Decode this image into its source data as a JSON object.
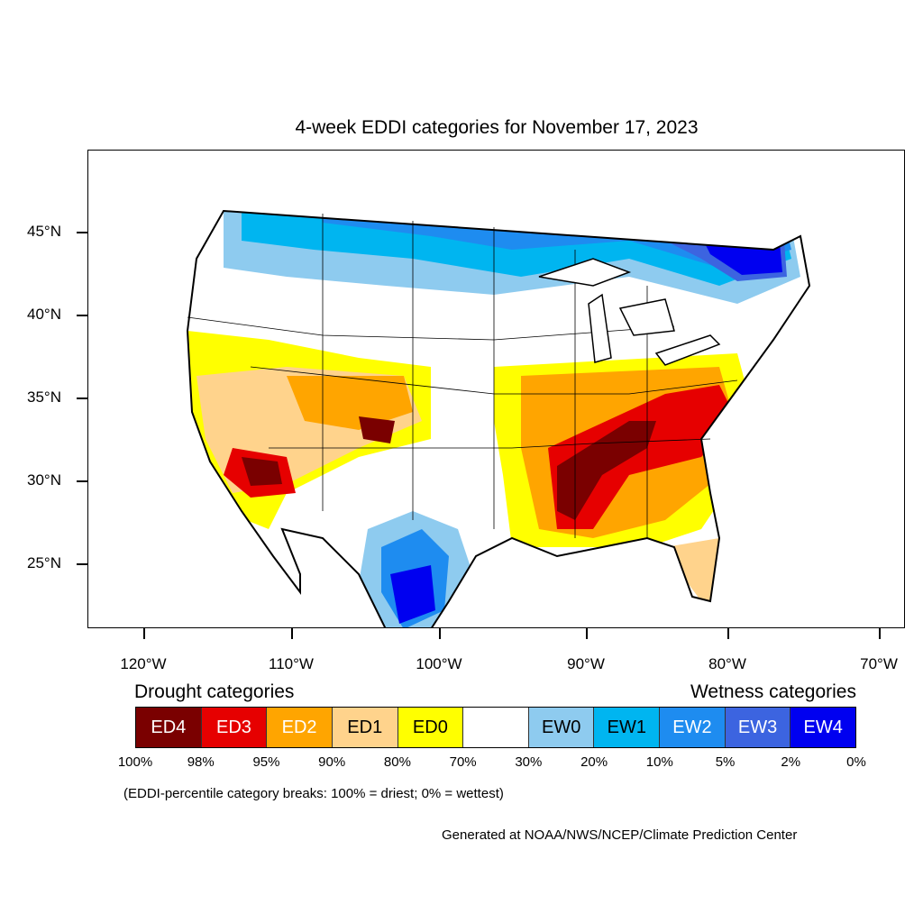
{
  "title": "4-week EDDI categories for November 17, 2023",
  "lat_labels": [
    "45°N",
    "40°N",
    "35°N",
    "30°N",
    "25°N"
  ],
  "lon_labels": [
    "120°W",
    "110°W",
    "100°W",
    "90°W",
    "80°W",
    "70°W"
  ],
  "legend": {
    "drought_heading": "Drought categories",
    "wetness_heading": "Wetness categories",
    "categories": [
      {
        "label": "ED4",
        "color": "#7a0000",
        "text_color": "#ffffff"
      },
      {
        "label": "ED3",
        "color": "#e60000",
        "text_color": "#ffffff"
      },
      {
        "label": "ED2",
        "color": "#ffa500",
        "text_color": "#ffffff"
      },
      {
        "label": "ED1",
        "color": "#ffd38c",
        "text_color": "#000000"
      },
      {
        "label": "ED0",
        "color": "#ffff00",
        "text_color": "#000000"
      },
      {
        "label": "",
        "color": "#ffffff",
        "text_color": "#000000"
      },
      {
        "label": "EW0",
        "color": "#8ecbef",
        "text_color": "#000000"
      },
      {
        "label": "EW1",
        "color": "#00b5f0",
        "text_color": "#000000"
      },
      {
        "label": "EW2",
        "color": "#1e8cf0",
        "text_color": "#ffffff"
      },
      {
        "label": "EW3",
        "color": "#3c64e0",
        "text_color": "#ffffff"
      },
      {
        "label": "EW4",
        "color": "#0000f0",
        "text_color": "#ffffff"
      }
    ],
    "breaks": [
      "100%",
      "98%",
      "95%",
      "90%",
      "80%",
      "70%",
      "30%",
      "20%",
      "10%",
      "5%",
      "2%",
      "0%"
    ]
  },
  "breaks_note": "(EDDI-percentile category breaks: 100% = driest; 0% = wettest)",
  "credit": "Generated at NOAA/NWS/NCEP/Climate Prediction Center"
}
